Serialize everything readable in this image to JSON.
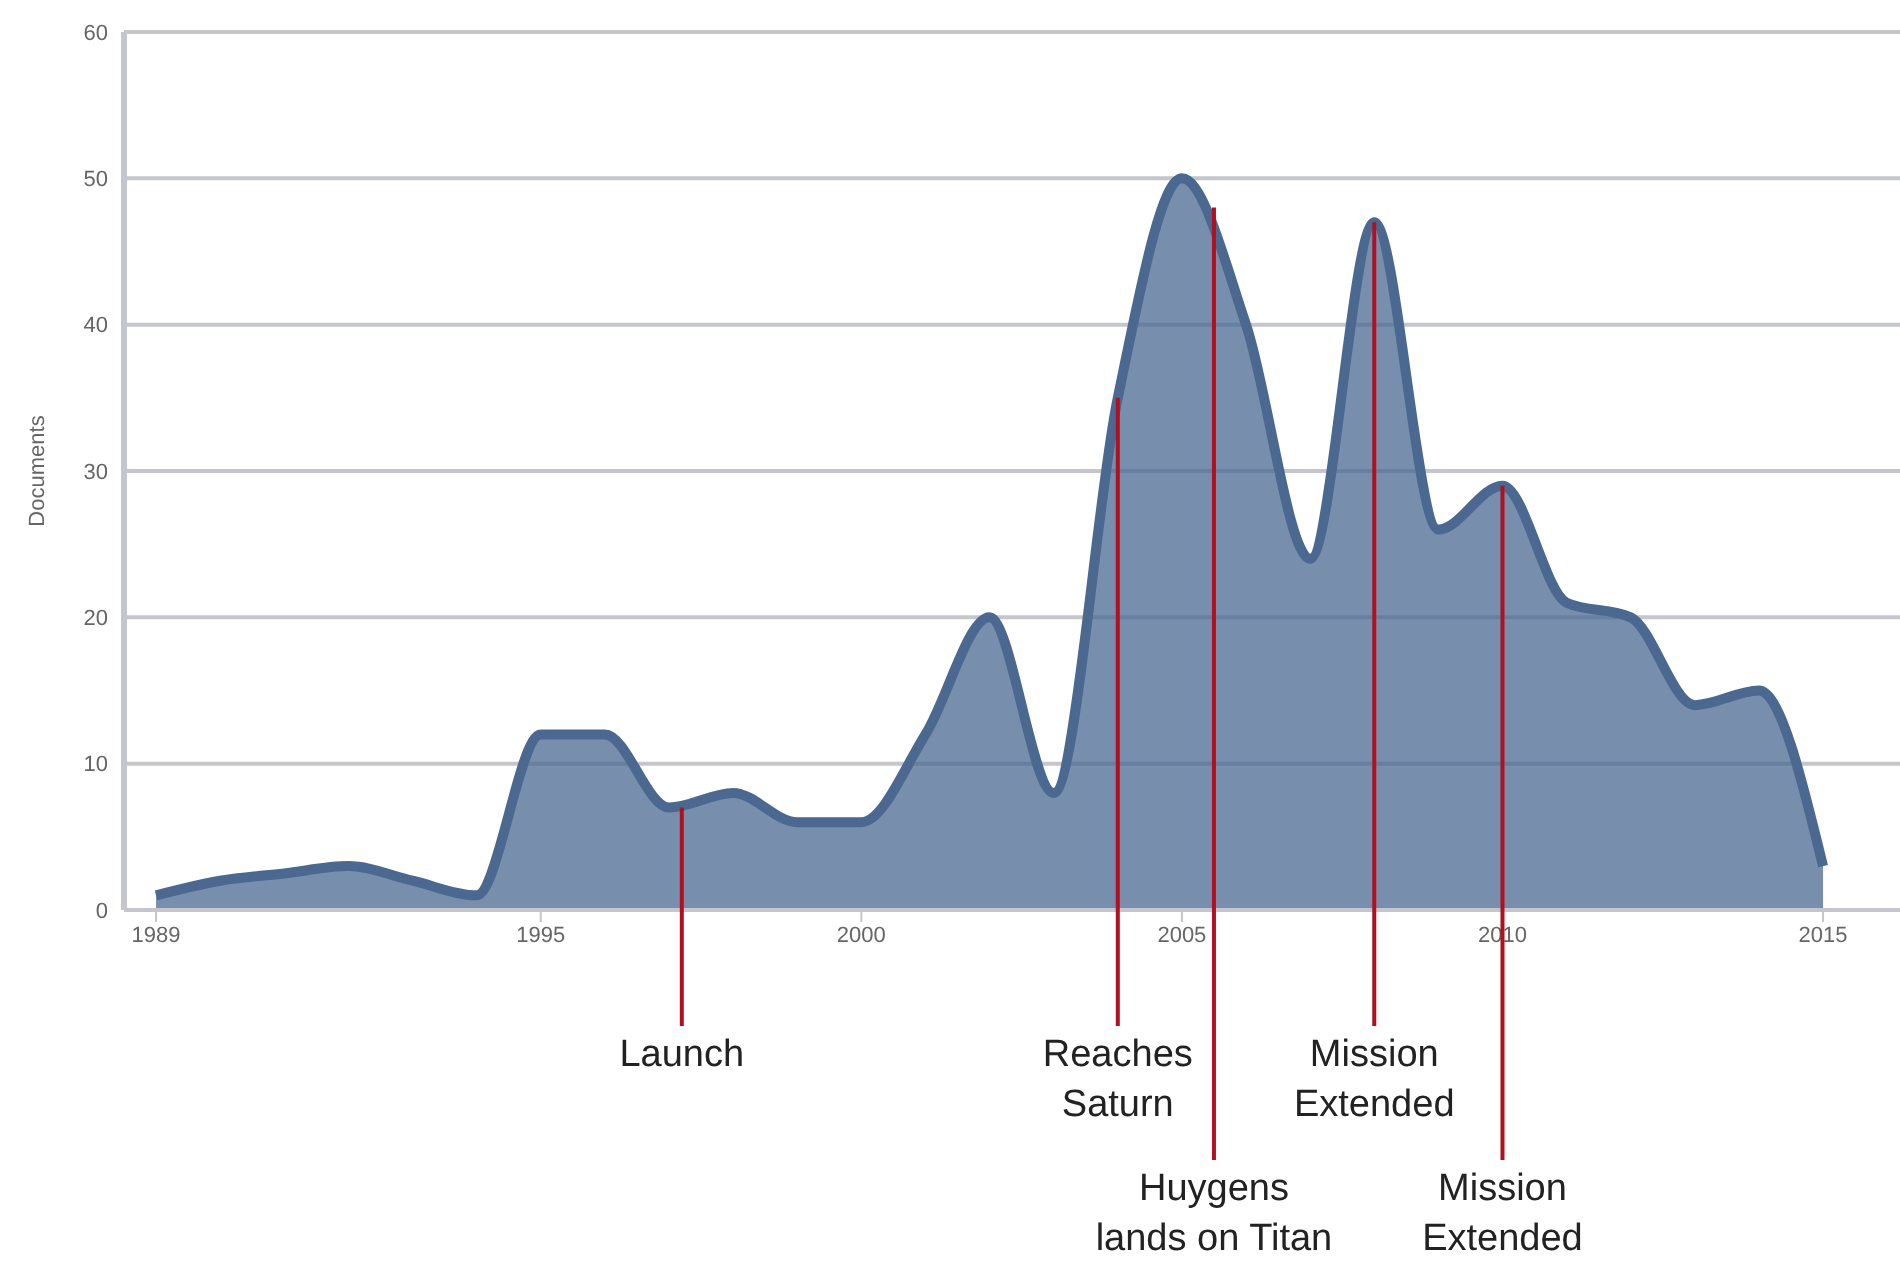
{
  "chart_data": {
    "type": "area",
    "ylabel": "Documents",
    "x": [
      1989,
      1990,
      1991,
      1992,
      1993,
      1994,
      1995,
      1996,
      1997,
      1998,
      1999,
      2000,
      2001,
      2002,
      2003,
      2004,
      2005,
      2006,
      2007,
      2008,
      2009,
      2010,
      2011,
      2012,
      2013,
      2014,
      2015
    ],
    "series": [
      {
        "color": "#4a6890",
        "values": [
          1,
          2,
          2.5,
          3,
          2,
          1,
          12,
          12,
          7,
          8,
          6,
          6,
          12,
          20,
          8,
          35,
          50,
          40,
          24,
          47,
          26,
          29,
          21,
          20,
          14,
          15,
          3
        ]
      }
    ],
    "xlim": [
      1988.5,
      2016.2
    ],
    "xticks": [
      1989,
      1995,
      2000,
      2005,
      2010,
      2015
    ],
    "ylim": [
      0,
      60
    ],
    "yticks": [
      0,
      10,
      20,
      30,
      40,
      50,
      60
    ],
    "grid": "y",
    "legend": false,
    "marker": "none",
    "line_style": "solid",
    "annotations": [
      {
        "text": "Launch",
        "x": 1997.2,
        "y": 7
      },
      {
        "text": "Reaches Saturn",
        "x": 2004,
        "y": 35
      },
      {
        "text": "Huygens lands on Titan",
        "x": 2005.5,
        "y": 48
      },
      {
        "text": "Mission Extended",
        "x": 2008,
        "y": 47
      },
      {
        "text": "Mission Extended",
        "x": 2010,
        "y": 29
      }
    ]
  }
}
